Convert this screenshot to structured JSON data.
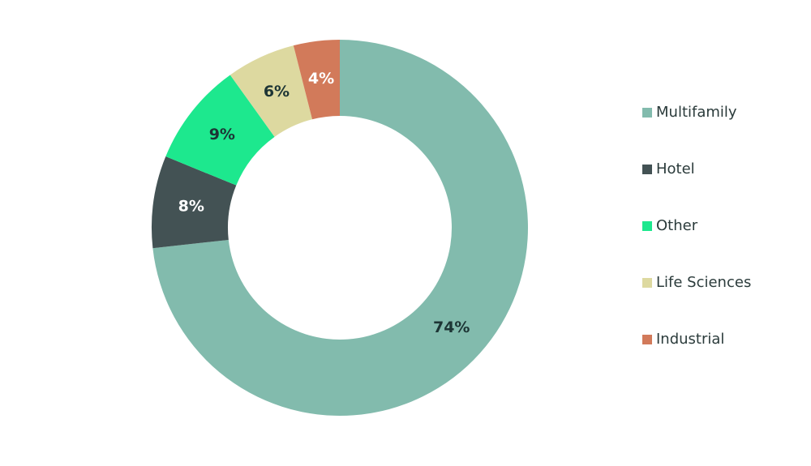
{
  "chart_data": {
    "type": "donut",
    "categories": [
      "Multifamily",
      "Hotel",
      "Other",
      "Life Sciences",
      "Industrial"
    ],
    "values": [
      74,
      8,
      9,
      6,
      4
    ],
    "value_labels": [
      "74%",
      "8%",
      "9%",
      "6%",
      "4%"
    ],
    "colors": [
      "#82bbad",
      "#435254",
      "#1de88e",
      "#ddd9a0",
      "#d27a5a"
    ],
    "label_colors": [
      "#1d3535",
      "#ffffff",
      "#1d3535",
      "#1d3535",
      "#ffffff"
    ],
    "legend": "right"
  }
}
